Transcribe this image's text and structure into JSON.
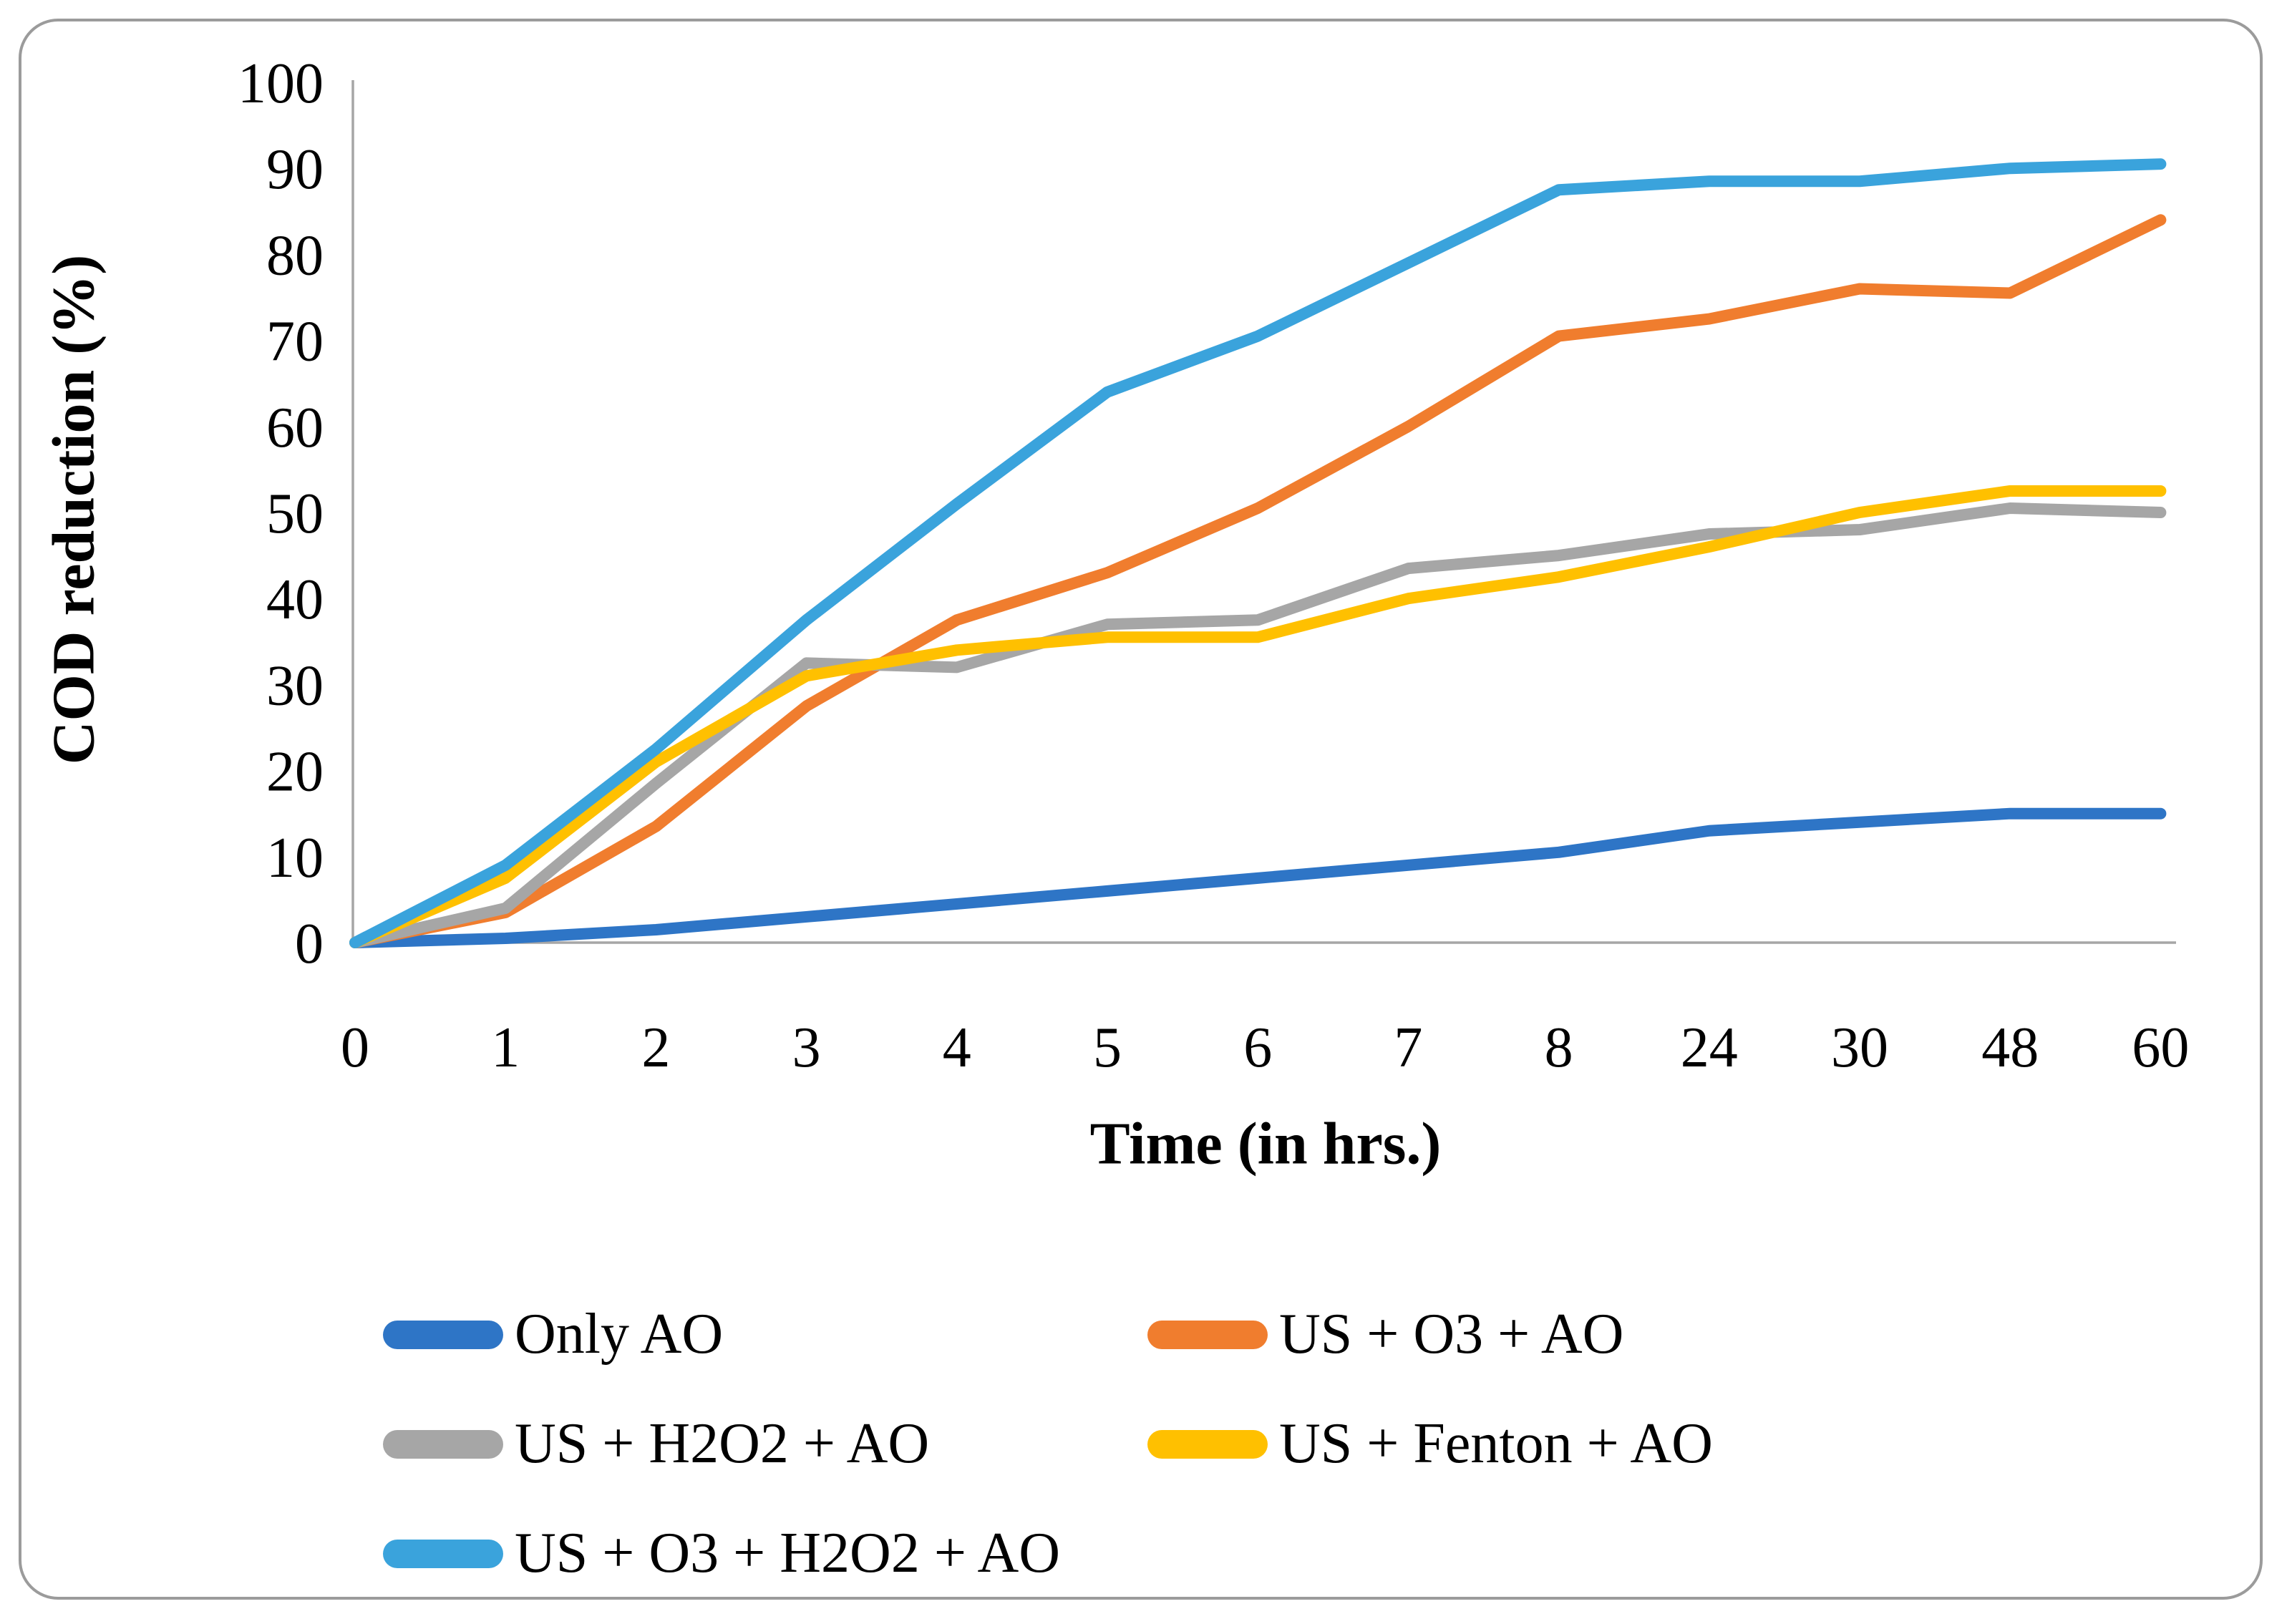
{
  "panel": {
    "background": "#ffffff",
    "border_color": "#9b9b9b",
    "axis_line_color": "#a6a6a6",
    "text_color": "#000000"
  },
  "chart_data": {
    "type": "line",
    "title": "",
    "xlabel": "Time (in hrs.)",
    "ylabel": "COD reduction (%)",
    "categories": [
      "0",
      "1",
      "2",
      "3",
      "4",
      "5",
      "6",
      "7",
      "8",
      "24",
      "30",
      "48",
      "60"
    ],
    "y_ticks": [
      0,
      10,
      20,
      30,
      40,
      50,
      60,
      70,
      80,
      90,
      100
    ],
    "ylim": [
      0,
      100
    ],
    "grid": false,
    "legend_position": "bottom-left, two columns",
    "series": [
      {
        "name": "Only AO",
        "color": "#2e75c6",
        "values": [
          0,
          0.5,
          1.5,
          3,
          4.5,
          6,
          7.5,
          9,
          10.5,
          13,
          14,
          15,
          15
        ]
      },
      {
        "name": "US + O3 + AO",
        "color": "#f07d2e",
        "values": [
          0,
          3.5,
          13.5,
          27.5,
          37.5,
          43,
          50.5,
          60,
          70.5,
          72.5,
          76,
          75.5,
          84
        ]
      },
      {
        "name": "US + H2O2 + AO",
        "color": "#a6a6a6",
        "values": [
          0,
          4,
          18.5,
          32.5,
          32,
          37,
          37.5,
          43.5,
          45,
          47.5,
          48,
          50.5,
          50
        ]
      },
      {
        "name": "US + Fenton + AO",
        "color": "#ffc000",
        "values": [
          0,
          7.5,
          21,
          31,
          34,
          35.5,
          35.5,
          40,
          42.5,
          46,
          50,
          52.5,
          52.5
        ]
      },
      {
        "name": "US + O3 + H2O2 + AO",
        "color": "#3aa3dc",
        "values": [
          0,
          9,
          22.5,
          37.5,
          51,
          64,
          70.5,
          79,
          87.5,
          88.5,
          88.5,
          90,
          90.5
        ]
      }
    ]
  }
}
